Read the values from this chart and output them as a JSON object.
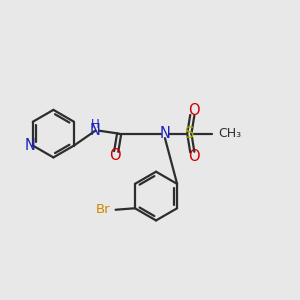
{
  "background_color": "#e8e8e8",
  "bond_color": "#2d2d2d",
  "N_color": "#2020bb",
  "O_color": "#cc0000",
  "S_color": "#aaaa00",
  "Br_color": "#cc8800",
  "line_width": 1.6,
  "fig_size": [
    3.0,
    3.0
  ],
  "dpi": 100,
  "xlim": [
    0,
    10
  ],
  "ylim": [
    0,
    10
  ]
}
